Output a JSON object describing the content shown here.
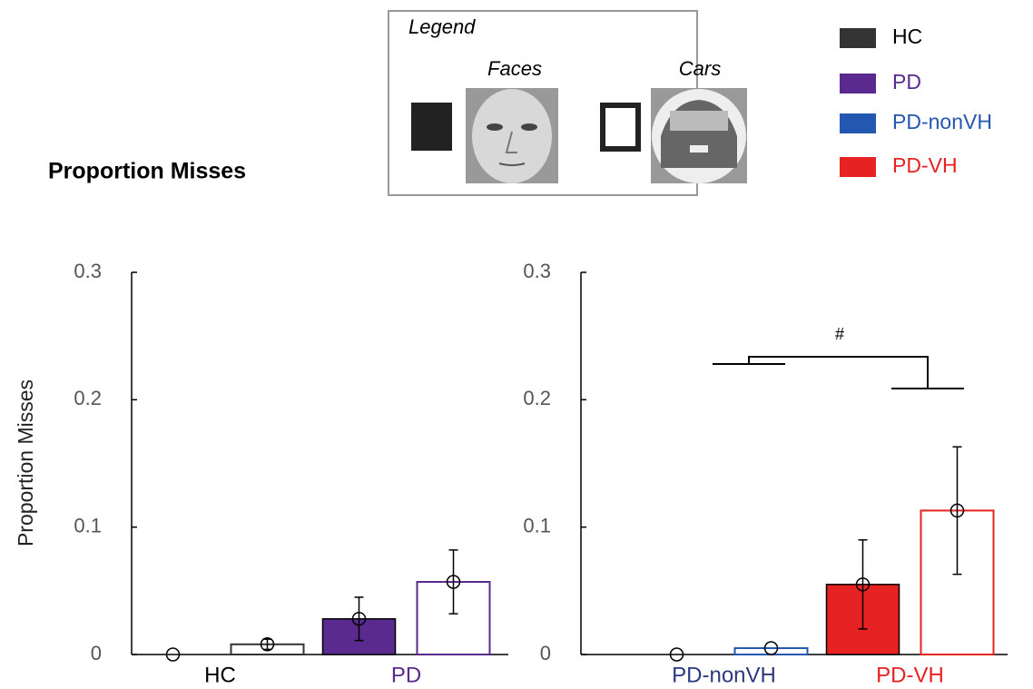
{
  "title": "Proportion Misses",
  "legend": {
    "title": "Legend",
    "items": [
      {
        "label": "Faces",
        "style": "filled"
      },
      {
        "label": "Cars",
        "style": "outline"
      }
    ]
  },
  "groups": [
    {
      "name": "HC",
      "color": "#333333"
    },
    {
      "name": "PD",
      "color": "#5a2a8e"
    },
    {
      "name": "PD-nonVH",
      "color": "#2457b0"
    },
    {
      "name": "PD-VH",
      "color": "#e62222"
    }
  ],
  "chart_data": [
    {
      "type": "bar",
      "ylabel": "Proportion Misses",
      "categories": [
        "HC",
        "PD"
      ],
      "colors": [
        "#333333",
        "#5a2a8e"
      ],
      "label_colors": [
        "#000000",
        "#5a2a8e"
      ],
      "series": [
        {
          "style": "filled",
          "values": [
            0,
            0.028
          ],
          "errors": [
            null,
            0.017
          ]
        },
        {
          "style": "outline",
          "values": [
            0.008,
            0.057
          ],
          "errors": [
            0.004,
            0.025
          ]
        }
      ],
      "ylim": [
        0,
        0.3
      ],
      "yticks": [
        0,
        0.1,
        0.2,
        0.3
      ]
    },
    {
      "type": "bar",
      "annotation": "#",
      "categories": [
        "PD-nonVH",
        "PD-VH"
      ],
      "colors": [
        "#2457b0",
        "#e62222"
      ],
      "label_colors": [
        "#2b3a7e",
        "#e62222"
      ],
      "series": [
        {
          "style": "filled",
          "values": [
            0,
            0.055
          ],
          "errors": [
            null,
            0.035
          ]
        },
        {
          "style": "outline",
          "values": [
            0.005,
            0.113
          ],
          "errors": [
            null,
            0.05
          ]
        }
      ],
      "ylim": [
        0,
        0.3
      ],
      "yticks": [
        0,
        0.1,
        0.2,
        0.3
      ]
    }
  ]
}
